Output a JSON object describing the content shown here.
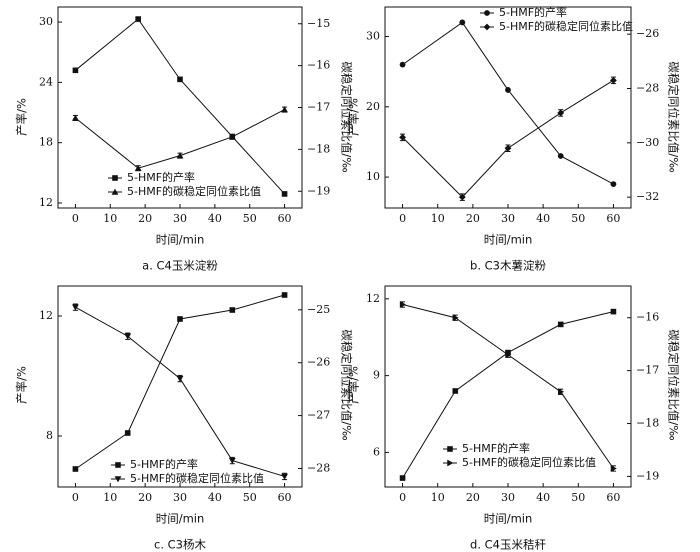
{
  "chart_data": [
    {
      "type": "line",
      "caption": "a.  C4玉米淀粉",
      "xlabel": "时间/min",
      "ylabel": "产率/%",
      "y2label": "碳稳定同位素比值/‰",
      "xlim": [
        -5,
        65
      ],
      "xticks": [
        0,
        10,
        20,
        30,
        40,
        50,
        60
      ],
      "ylim": [
        11.5,
        31.5
      ],
      "yticks": [
        12,
        18,
        24,
        30
      ],
      "y2lim": [
        -19.4,
        -14.6
      ],
      "y2ticks": [
        -19,
        -18,
        -17,
        -16,
        -15
      ],
      "legend_position": "bottom-left",
      "series": [
        {
          "name": "5-HMF的产率",
          "marker": "square",
          "axis": "left",
          "x": [
            0,
            18,
            30,
            45,
            60
          ],
          "values": [
            25.2,
            30.3,
            24.3,
            18.6,
            12.9
          ]
        },
        {
          "name": "5-HMF的碳稳定同位素比值",
          "marker": "triangle-up",
          "axis": "right",
          "x": [
            0,
            18,
            30,
            45,
            60
          ],
          "values": [
            -17.25,
            -18.45,
            -18.15,
            -17.7,
            -17.05
          ],
          "err": [
            0.06,
            0.06,
            0.06,
            0.06,
            0.06
          ]
        }
      ]
    },
    {
      "type": "line",
      "caption": "b.  C3木薯淀粉",
      "xlabel": "时间/min",
      "ylabel": "产率/%",
      "y2label": "碳稳定同位素比值/‰",
      "xlim": [
        -5,
        65
      ],
      "xticks": [
        0,
        10,
        20,
        30,
        40,
        50,
        60
      ],
      "ylim": [
        5.6,
        34.2
      ],
      "yticks": [
        10,
        20,
        30
      ],
      "y2lim": [
        -32.4,
        -25
      ],
      "y2ticks": [
        -32,
        -30,
        -28,
        -26
      ],
      "legend_position": "top-left",
      "series": [
        {
          "name": "5-HMF的产率",
          "marker": "circle",
          "axis": "left",
          "x": [
            0,
            17,
            30,
            45,
            60
          ],
          "values": [
            26,
            32,
            22.4,
            13,
            9
          ]
        },
        {
          "name": "5-HMF的碳稳定同位素比值",
          "marker": "diamond",
          "axis": "right",
          "x": [
            0,
            17,
            30,
            45,
            60
          ],
          "values": [
            -29.8,
            -32,
            -30.2,
            -28.9,
            -27.7
          ],
          "err": [
            0.12,
            0.12,
            0.12,
            0.12,
            0.12
          ]
        }
      ]
    },
    {
      "type": "line",
      "caption": "c.  C3杨木",
      "xlabel": "时间/min",
      "ylabel": "产率/%",
      "y2label": "碳稳定同位素比值/‰",
      "xlim": [
        -5,
        65
      ],
      "xticks": [
        0,
        10,
        20,
        30,
        40,
        50,
        60
      ],
      "ylim": [
        6.3,
        13.0
      ],
      "yticks": [
        8,
        12
      ],
      "y2lim": [
        -28.35,
        -24.55
      ],
      "y2ticks": [
        -28,
        -27,
        -26,
        -25
      ],
      "legend_position": "bottom-left",
      "series": [
        {
          "name": "5-HMF的产率",
          "marker": "square",
          "axis": "left",
          "x": [
            0,
            15,
            30,
            45,
            60
          ],
          "values": [
            6.9,
            8.1,
            11.9,
            12.2,
            12.7
          ]
        },
        {
          "name": "5-HMF的碳稳定同位素比值",
          "marker": "triangle-down",
          "axis": "right",
          "x": [
            0,
            15,
            30,
            45,
            60
          ],
          "values": [
            -24.95,
            -25.5,
            -26.3,
            -27.85,
            -28.15
          ],
          "err": [
            0.06,
            0.06,
            0.06,
            0.06,
            0.06
          ]
        }
      ]
    },
    {
      "type": "line",
      "caption": "d.  C4玉米秸秆",
      "xlabel": "时间/min",
      "ylabel": "产率/%",
      "y2label": "碳稳定同位素比值/‰",
      "xlim": [
        -5,
        65
      ],
      "xticks": [
        0,
        10,
        20,
        30,
        40,
        50,
        60
      ],
      "ylim": [
        4.65,
        12.5
      ],
      "yticks": [
        6,
        9,
        12
      ],
      "y2lim": [
        -19.2,
        -15.4
      ],
      "y2ticks": [
        -19,
        -18,
        -17,
        -16
      ],
      "legend_position": "bottom-center",
      "series": [
        {
          "name": "5-HMF的产率",
          "marker": "square",
          "axis": "left",
          "x": [
            0,
            15,
            30,
            45,
            60
          ],
          "values": [
            5.0,
            8.4,
            9.9,
            11.0,
            11.5
          ]
        },
        {
          "name": "5-HMF的碳稳定同位素比值",
          "marker": "triangle-right",
          "axis": "right",
          "x": [
            0,
            15,
            30,
            45,
            60
          ],
          "values": [
            -15.75,
            -16.0,
            -16.7,
            -17.4,
            -18.85
          ],
          "err": [
            0.05,
            0.05,
            0.05,
            0.05,
            0.05
          ]
        }
      ]
    }
  ]
}
